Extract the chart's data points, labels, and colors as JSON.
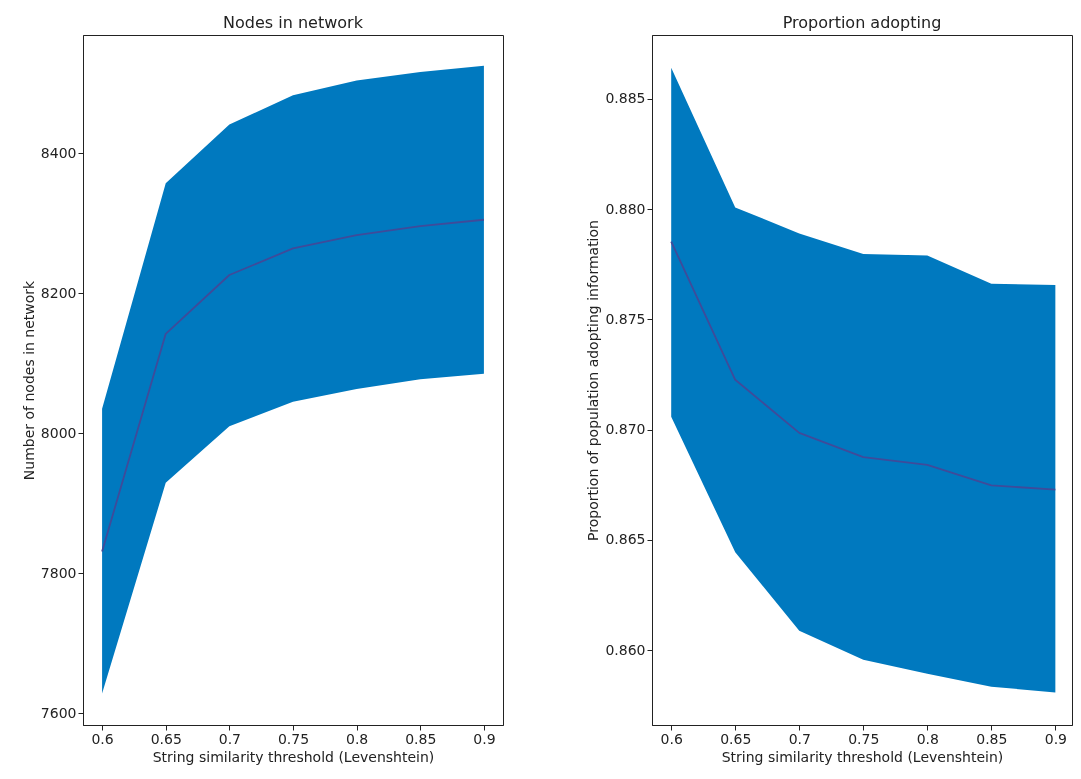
{
  "chart_data": [
    {
      "type": "line",
      "title": "Nodes in network",
      "xlabel": "String similarity threshold (Levenshtein)",
      "ylabel": "Number of nodes in network",
      "x": [
        0.6,
        0.65,
        0.7,
        0.75,
        0.8,
        0.85,
        0.9
      ],
      "xlim": [
        0.585,
        0.915
      ],
      "xticks": [
        0.6,
        0.65,
        0.7,
        0.75,
        0.8,
        0.85,
        0.9
      ],
      "ylim": [
        7583,
        8569
      ],
      "yticks": [
        7600,
        7800,
        8000,
        8200,
        8400
      ],
      "grid": false,
      "marker": "none",
      "line_style": "solid",
      "series": [
        {
          "color": "#3f4b9a",
          "values": [
            7831,
            8142,
            8226,
            8264,
            8283,
            8296,
            8305
          ],
          "lower": [
            7628,
            7929,
            8010,
            8045,
            8063,
            8077,
            8085
          ],
          "upper": [
            8035,
            8357,
            8441,
            8483,
            8504,
            8516,
            8525
          ]
        }
      ]
    },
    {
      "type": "line",
      "title": "Proportion adopting",
      "xlabel": "String similarity threshold (Levenshtein)",
      "ylabel": "Proportion of population adopting information",
      "x": [
        0.6,
        0.65,
        0.7,
        0.75,
        0.8,
        0.85,
        0.9
      ],
      "xlim": [
        0.585,
        0.913
      ],
      "xticks": [
        0.6,
        0.65,
        0.7,
        0.75,
        0.8,
        0.85,
        0.9
      ],
      "ylim": [
        0.8566,
        0.8879
      ],
      "yticks": [
        {
          "value": 0.86,
          "label": "0.860"
        },
        {
          "value": 0.865,
          "label": "0.865"
        },
        {
          "value": 0.87,
          "label": "0.870"
        },
        {
          "value": 0.875,
          "label": "0.875"
        },
        {
          "value": 0.88,
          "label": "0.880"
        },
        {
          "value": 0.885,
          "label": "0.885"
        }
      ],
      "grid": false,
      "marker": "none",
      "line_style": "solid",
      "series": [
        {
          "color": "#3f4b9a",
          "values": [
            0.87853,
            0.87226,
            0.86985,
            0.86875,
            0.8684,
            0.86747,
            0.86728
          ],
          "lower": [
            0.87058,
            0.86444,
            0.86087,
            0.85956,
            0.85892,
            0.85834,
            0.85807
          ],
          "upper": [
            0.88641,
            0.88008,
            0.8789,
            0.87797,
            0.8779,
            0.87662,
            0.87656
          ]
        }
      ]
    }
  ]
}
